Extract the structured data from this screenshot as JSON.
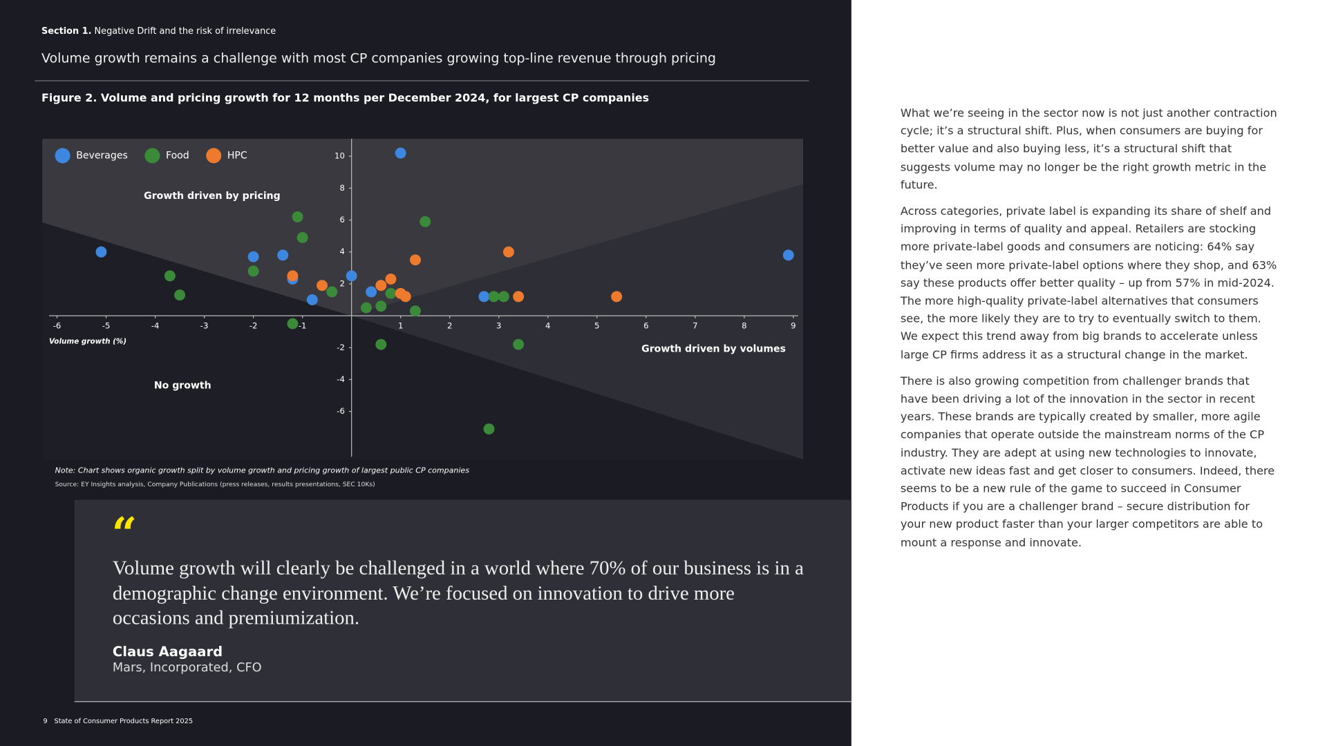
{
  "header": {
    "section_label": "Section 1.",
    "section_title": "Negative Drift and the risk of irrelevance",
    "headline": "Volume growth remains a challenge with most CP companies growing top-line revenue through pricing"
  },
  "figure_title": "Figure 2. Volume and pricing growth for 12 months per December 2024, for largest CP companies",
  "chart_data": {
    "type": "scatter",
    "x_label": "Volume growth (%)",
    "annotations": [
      "Growth driven by pricing",
      "Growth driven by volumes",
      "No growth"
    ],
    "xlim": [
      -6.3,
      9.2
    ],
    "ylim": [
      -9,
      11.1
    ],
    "xticks": [
      -6,
      -5,
      -4,
      -3,
      -2,
      -1,
      1,
      2,
      3,
      4,
      5,
      6,
      7,
      8,
      9
    ],
    "yticks": [
      10,
      8,
      6,
      4,
      2,
      -2,
      -4,
      -6
    ],
    "grid": false,
    "legend": "top-left",
    "series": [
      {
        "name": "Beverages",
        "color": "#3d87e0",
        "x": [
          1.0,
          -5.1,
          -2.0,
          -1.4,
          -1.2,
          -0.8,
          0.0,
          0.4,
          2.7,
          8.9
        ],
        "values": [
          10.2,
          4.0,
          3.7,
          3.8,
          2.3,
          1.0,
          2.5,
          1.5,
          1.2,
          3.8
        ]
      },
      {
        "name": "Food",
        "color": "#3b8a3a",
        "x": [
          -1.1,
          -1.0,
          1.5,
          -3.7,
          -3.5,
          -2.0,
          -0.4,
          0.8,
          0.6,
          0.3,
          1.3,
          2.9,
          3.1,
          -1.2,
          0.6,
          3.4,
          2.8
        ],
        "values": [
          6.2,
          4.9,
          5.9,
          2.5,
          1.3,
          2.8,
          1.5,
          1.4,
          0.6,
          0.5,
          0.3,
          1.2,
          1.2,
          -0.5,
          -1.8,
          -1.8,
          -7.1
        ]
      },
      {
        "name": "HPC",
        "color": "#ee7a2e",
        "x": [
          -1.2,
          -0.6,
          0.6,
          0.8,
          1.3,
          1.0,
          1.1,
          3.2,
          3.4,
          5.4
        ],
        "values": [
          2.5,
          1.9,
          1.9,
          2.3,
          3.5,
          1.4,
          1.2,
          4.0,
          1.2,
          1.2
        ]
      }
    ]
  },
  "note": "Note: Chart shows organic growth split by volume growth and pricing growth of largest public CP companies",
  "source": "Source: EY Insights analysis, Company Publications (press releases, results presentations, SEC 10Ks)",
  "quote": {
    "mark": "“",
    "text": "Volume growth will clearly be challenged in a world where 70% of our business is in a demographic change environment. We’re focused on innovation to drive more occasions and premiumization.",
    "author": "Claus Aagaard",
    "role": "Mars, Incorporated, CFO"
  },
  "footer": {
    "page": "9",
    "title": "State of Consumer Products Report 2025"
  },
  "body": {
    "paragraphs": [
      "What we’re seeing in the sector now is not just another contraction cycle; it’s a structural shift. Plus, when consumers are buying for better value and also buying less, it’s a structural shift that suggests volume may no longer be the right growth metric in the future.",
      "Across categories, private label is expanding its share of shelf and improving in terms of quality and appeal. Retailers are stocking more private-label goods and consumers are noticing: 64% say they’ve seen more private-label options where they shop, and 63% say these products offer better quality – up from 57% in mid-2024. The more high-quality private-label alternatives that consumers see, the more likely they are to try to eventually switch to them. We expect this trend away from big brands to accelerate unless large CP firms address it as a structural change in the market.",
      "There is also growing competition from challenger brands that have been driving a lot of the innovation in the sector in recent years. These brands are typically created by smaller, more agile companies that operate outside the mainstream norms of the CP industry. They are adept at using new technologies to innovate, activate new ideas fast and get closer to consumers. Indeed, there seems to be a new rule of the game to succeed in Consumer Products if you are a challenger brand – secure distribution for your new product faster than your larger competitors are able to mount a response and innovate."
    ]
  }
}
